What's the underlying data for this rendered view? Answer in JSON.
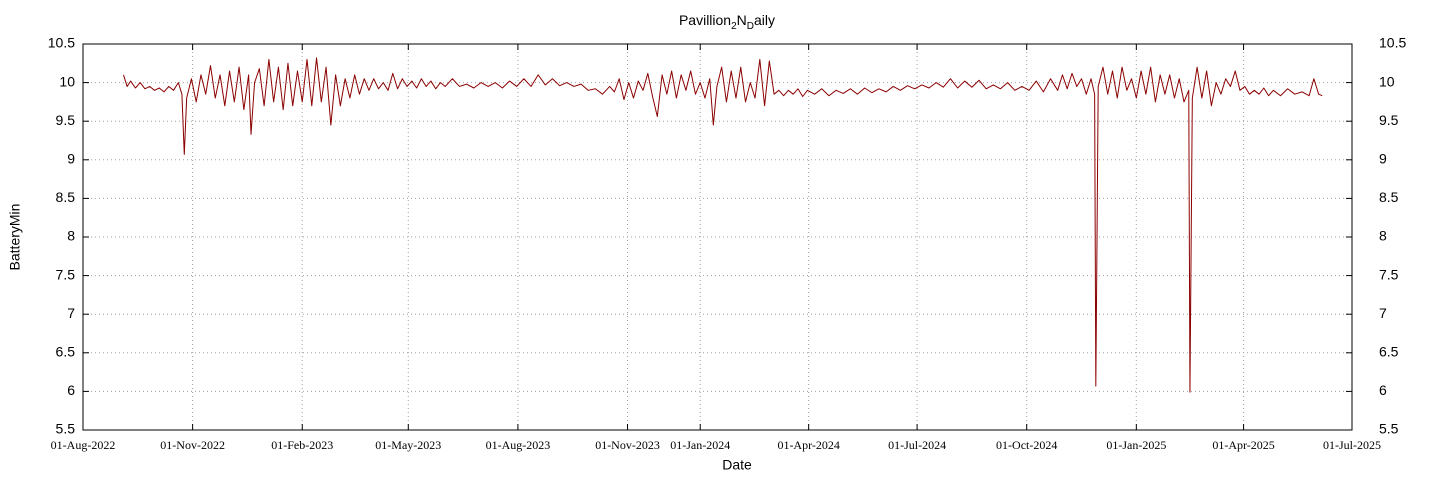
{
  "chart_data": {
    "type": "line",
    "title_parts": [
      {
        "text": "Pavillion"
      },
      {
        "text": "2",
        "sub": true
      },
      {
        "text": "N"
      },
      {
        "text": "D",
        "sub": true
      },
      {
        "text": "aily"
      }
    ],
    "xlabel": "Date",
    "ylabel": "BatteryMin",
    "color": "#8b0000",
    "grid": true,
    "xlim": [
      "2022-08-01",
      "2025-07-01"
    ],
    "xticks": [
      {
        "value": "2022-08-01",
        "label": "01-Aug-2022"
      },
      {
        "value": "2022-11-01",
        "label": "01-Nov-2022"
      },
      {
        "value": "2023-02-01",
        "label": "01-Feb-2023"
      },
      {
        "value": "2023-05-01",
        "label": "01-May-2023"
      },
      {
        "value": "2023-08-01",
        "label": "01-Aug-2023"
      },
      {
        "value": "2023-11-01",
        "label": "01-Nov-2023"
      },
      {
        "value": "2024-01-01",
        "label": "01-Jan-2024"
      },
      {
        "value": "2024-04-01",
        "label": "01-Apr-2024"
      },
      {
        "value": "2024-07-01",
        "label": "01-Jul-2024"
      },
      {
        "value": "2024-10-01",
        "label": "01-Oct-2024"
      },
      {
        "value": "2025-01-01",
        "label": "01-Jan-2025"
      },
      {
        "value": "2025-04-01",
        "label": "01-Apr-2025"
      },
      {
        "value": "2025-07-01",
        "label": "01-Jul-2025"
      }
    ],
    "ylim": [
      5.5,
      10.5
    ],
    "yticks": [
      5.5,
      6,
      6.5,
      7,
      7.5,
      8,
      8.5,
      9,
      9.5,
      10,
      10.5
    ],
    "y2lim": [
      5.5,
      10.5
    ],
    "y2ticks": [
      5.5,
      6,
      6.5,
      7,
      7.5,
      8,
      8.5,
      9,
      9.5,
      10,
      10.5
    ],
    "x": [
      "2022-09-04",
      "2022-09-07",
      "2022-09-10",
      "2022-09-14",
      "2022-09-18",
      "2022-09-22",
      "2022-09-26",
      "2022-09-30",
      "2022-10-04",
      "2022-10-08",
      "2022-10-12",
      "2022-10-16",
      "2022-10-20",
      "2022-10-23",
      "2022-10-25",
      "2022-10-27",
      "2022-10-31",
      "2022-11-04",
      "2022-11-08",
      "2022-11-12",
      "2022-11-16",
      "2022-11-20",
      "2022-11-24",
      "2022-11-28",
      "2022-12-02",
      "2022-12-06",
      "2022-12-10",
      "2022-12-14",
      "2022-12-18",
      "2022-12-20",
      "2022-12-23",
      "2022-12-27",
      "2022-12-31",
      "2023-01-04",
      "2023-01-08",
      "2023-01-12",
      "2023-01-16",
      "2023-01-20",
      "2023-01-24",
      "2023-01-28",
      "2023-02-01",
      "2023-02-05",
      "2023-02-09",
      "2023-02-13",
      "2023-02-17",
      "2023-02-21",
      "2023-02-25",
      "2023-03-01",
      "2023-03-05",
      "2023-03-09",
      "2023-03-13",
      "2023-03-17",
      "2023-03-21",
      "2023-03-25",
      "2023-03-29",
      "2023-04-02",
      "2023-04-06",
      "2023-04-10",
      "2023-04-14",
      "2023-04-18",
      "2023-04-22",
      "2023-04-26",
      "2023-04-30",
      "2023-05-04",
      "2023-05-08",
      "2023-05-12",
      "2023-05-16",
      "2023-05-20",
      "2023-05-24",
      "2023-05-28",
      "2023-06-01",
      "2023-06-07",
      "2023-06-13",
      "2023-06-19",
      "2023-06-25",
      "2023-07-01",
      "2023-07-07",
      "2023-07-13",
      "2023-07-19",
      "2023-07-25",
      "2023-07-31",
      "2023-08-06",
      "2023-08-12",
      "2023-08-18",
      "2023-08-24",
      "2023-08-30",
      "2023-09-05",
      "2023-09-11",
      "2023-09-17",
      "2023-09-23",
      "2023-09-29",
      "2023-10-05",
      "2023-10-11",
      "2023-10-17",
      "2023-10-21",
      "2023-10-25",
      "2023-10-29",
      "2023-11-02",
      "2023-11-06",
      "2023-11-10",
      "2023-11-14",
      "2023-11-18",
      "2023-11-22",
      "2023-11-26",
      "2023-11-30",
      "2023-12-04",
      "2023-12-08",
      "2023-12-12",
      "2023-12-16",
      "2023-12-20",
      "2023-12-24",
      "2023-12-28",
      "2024-01-01",
      "2024-01-05",
      "2024-01-09",
      "2024-01-12",
      "2024-01-15",
      "2024-01-19",
      "2024-01-23",
      "2024-01-27",
      "2024-01-31",
      "2024-02-04",
      "2024-02-08",
      "2024-02-12",
      "2024-02-16",
      "2024-02-20",
      "2024-02-24",
      "2024-02-28",
      "2024-03-03",
      "2024-03-07",
      "2024-03-11",
      "2024-03-15",
      "2024-03-19",
      "2024-03-23",
      "2024-03-27",
      "2024-03-31",
      "2024-04-06",
      "2024-04-12",
      "2024-04-18",
      "2024-04-24",
      "2024-04-30",
      "2024-05-06",
      "2024-05-12",
      "2024-05-18",
      "2024-05-24",
      "2024-05-30",
      "2024-06-05",
      "2024-06-11",
      "2024-06-17",
      "2024-06-23",
      "2024-06-29",
      "2024-07-05",
      "2024-07-11",
      "2024-07-17",
      "2024-07-23",
      "2024-07-29",
      "2024-08-04",
      "2024-08-10",
      "2024-08-16",
      "2024-08-22",
      "2024-08-28",
      "2024-09-03",
      "2024-09-09",
      "2024-09-15",
      "2024-09-21",
      "2024-09-27",
      "2024-10-03",
      "2024-10-09",
      "2024-10-15",
      "2024-10-21",
      "2024-10-27",
      "2024-10-31",
      "2024-11-04",
      "2024-11-08",
      "2024-11-12",
      "2024-11-16",
      "2024-11-20",
      "2024-11-24",
      "2024-11-27",
      "2024-11-28",
      "2024-11-29",
      "2024-11-30",
      "2024-12-04",
      "2024-12-08",
      "2024-12-12",
      "2024-12-16",
      "2024-12-20",
      "2024-12-24",
      "2024-12-28",
      "2025-01-01",
      "2025-01-05",
      "2025-01-09",
      "2025-01-13",
      "2025-01-17",
      "2025-01-21",
      "2025-01-25",
      "2025-01-29",
      "2025-02-02",
      "2025-02-06",
      "2025-02-10",
      "2025-02-14",
      "2025-02-15",
      "2025-02-16",
      "2025-02-17",
      "2025-02-21",
      "2025-02-25",
      "2025-03-01",
      "2025-03-05",
      "2025-03-09",
      "2025-03-13",
      "2025-03-17",
      "2025-03-21",
      "2025-03-25",
      "2025-03-29",
      "2025-04-02",
      "2025-04-06",
      "2025-04-10",
      "2025-04-14",
      "2025-04-18",
      "2025-04-22",
      "2025-04-26",
      "2025-05-02",
      "2025-05-08",
      "2025-05-14",
      "2025-05-20",
      "2025-05-26",
      "2025-05-30",
      "2025-06-03",
      "2025-06-06"
    ],
    "values": [
      10.1,
      9.95,
      10.02,
      9.93,
      10.0,
      9.92,
      9.95,
      9.9,
      9.93,
      9.88,
      9.95,
      9.9,
      10.0,
      9.85,
      9.07,
      9.8,
      10.05,
      9.75,
      10.1,
      9.85,
      10.22,
      9.8,
      10.1,
      9.7,
      10.15,
      9.75,
      10.2,
      9.65,
      10.1,
      9.33,
      10.0,
      10.18,
      9.7,
      10.3,
      9.75,
      10.2,
      9.65,
      10.25,
      9.7,
      10.15,
      9.75,
      10.3,
      9.7,
      10.32,
      9.75,
      10.2,
      9.45,
      10.1,
      9.7,
      10.05,
      9.8,
      10.1,
      9.85,
      10.05,
      9.9,
      10.05,
      9.92,
      10.0,
      9.9,
      10.12,
      9.92,
      10.05,
      9.95,
      10.02,
      9.93,
      10.05,
      9.95,
      10.02,
      9.92,
      10.0,
      9.95,
      10.05,
      9.95,
      9.98,
      9.93,
      10.0,
      9.95,
      10.0,
      9.93,
      10.02,
      9.95,
      10.05,
      9.95,
      10.1,
      9.97,
      10.05,
      9.96,
      10.0,
      9.95,
      9.98,
      9.9,
      9.92,
      9.85,
      9.95,
      9.88,
      10.05,
      9.78,
      10.0,
      9.8,
      10.02,
      9.9,
      10.12,
      9.82,
      9.56,
      10.1,
      9.85,
      10.15,
      9.8,
      10.1,
      9.9,
      10.15,
      9.85,
      10.0,
      9.8,
      10.05,
      9.45,
      9.95,
      10.2,
      9.75,
      10.15,
      9.8,
      10.2,
      9.75,
      10.0,
      9.8,
      10.3,
      9.7,
      10.28,
      9.85,
      9.9,
      9.83,
      9.9,
      9.85,
      9.92,
      9.82,
      9.9,
      9.85,
      9.92,
      9.83,
      9.9,
      9.86,
      9.92,
      9.85,
      9.93,
      9.87,
      9.92,
      9.88,
      9.95,
      9.9,
      9.96,
      9.92,
      9.97,
      9.93,
      10.0,
      9.94,
      10.05,
      9.93,
      10.02,
      9.94,
      10.03,
      9.92,
      9.97,
      9.92,
      10.0,
      9.9,
      9.95,
      9.9,
      10.02,
      9.88,
      10.05,
      9.9,
      10.1,
      9.92,
      10.12,
      9.95,
      10.05,
      9.85,
      10.05,
      9.85,
      6.07,
      7.98,
      9.95,
      10.2,
      9.85,
      10.15,
      9.8,
      10.2,
      9.9,
      10.05,
      9.8,
      10.15,
      9.85,
      10.2,
      9.75,
      10.1,
      9.85,
      10.1,
      9.8,
      10.05,
      9.75,
      9.9,
      5.99,
      7.9,
      9.8,
      10.2,
      9.8,
      10.15,
      9.7,
      10.0,
      9.85,
      10.05,
      9.95,
      10.15,
      9.9,
      9.95,
      9.85,
      9.9,
      9.85,
      9.93,
      9.83,
      9.9,
      9.83,
      9.92,
      9.85,
      9.88,
      9.83,
      10.05,
      9.85,
      9.83
    ]
  }
}
